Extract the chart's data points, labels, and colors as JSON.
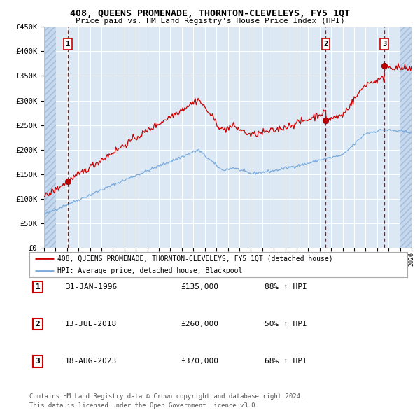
{
  "title": "408, QUEENS PROMENADE, THORNTON-CLEVELEYS, FY5 1QT",
  "subtitle": "Price paid vs. HM Land Registry's House Price Index (HPI)",
  "hpi_color": "#7aaadd",
  "price_color": "#cc0000",
  "bg_color": "#dce9f5",
  "grid_color": "#ffffff",
  "sale_dates": [
    1996.08,
    2018.53,
    2023.63
  ],
  "sale_prices": [
    135000,
    260000,
    370000
  ],
  "sale_labels": [
    "1",
    "2",
    "3"
  ],
  "legend_line1": "408, QUEENS PROMENADE, THORNTON-CLEVELEYS, FY5 1QT (detached house)",
  "legend_line2": "HPI: Average price, detached house, Blackpool",
  "footer1": "Contains HM Land Registry data © Crown copyright and database right 2024.",
  "footer2": "This data is licensed under the Open Government Licence v3.0.",
  "table_rows": [
    [
      "1",
      "31-JAN-1996",
      "£135,000",
      "88% ↑ HPI"
    ],
    [
      "2",
      "13-JUL-2018",
      "£260,000",
      "50% ↑ HPI"
    ],
    [
      "3",
      "18-AUG-2023",
      "£370,000",
      "68% ↑ HPI"
    ]
  ],
  "xlim": [
    1994,
    2026
  ],
  "ylim": [
    0,
    450000
  ],
  "ytick_vals": [
    0,
    50000,
    100000,
    150000,
    200000,
    250000,
    300000,
    350000,
    400000,
    450000
  ],
  "ytick_labels": [
    "£0",
    "£50K",
    "£100K",
    "£150K",
    "£200K",
    "£250K",
    "£300K",
    "£350K",
    "£400K",
    "£450K"
  ]
}
